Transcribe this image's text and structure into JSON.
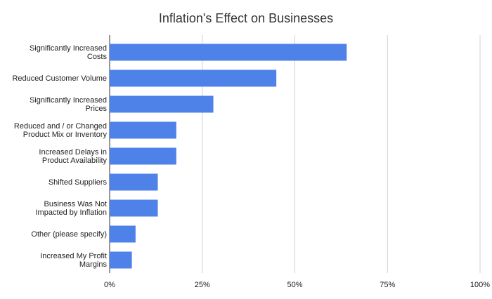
{
  "chart_data": {
    "type": "hbar",
    "title": "Inflation's Effect on Businesses",
    "categories": [
      "Significantly Increased Costs",
      "Reduced Customer Volume",
      "Significantly Increased Prices",
      "Reduced and / or Changed Product Mix or Inventory",
      "Increased Delays in Product Availability",
      "Shifted Suppliers",
      "Business Was Not Impacted by Inflation",
      "Other (please specify)",
      "Increased My Profit Margins"
    ],
    "values": [
      64,
      45,
      28,
      18,
      18,
      13,
      13,
      7,
      6
    ],
    "color": "#4f82e9",
    "xlim": [
      0,
      100
    ],
    "xticks": [
      {
        "value": 0,
        "label": "0%"
      },
      {
        "value": 25,
        "label": "25%"
      },
      {
        "value": 50,
        "label": "50%"
      },
      {
        "value": 75,
        "label": "75%"
      },
      {
        "value": 100,
        "label": "100%"
      }
    ],
    "grid": true
  }
}
